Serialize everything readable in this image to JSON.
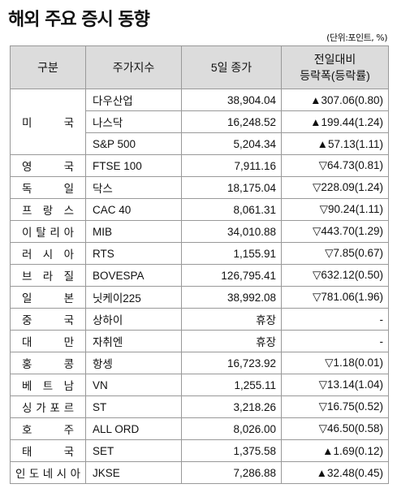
{
  "title": "해외 주요 증시 동향",
  "unit": "(단위:포인트, %)",
  "headers": {
    "col1": "구분",
    "col2": "주가지수",
    "col3": "5일 종가",
    "col4_line1": "전일대비",
    "col4_line2": "등락폭(등락률)"
  },
  "rows": [
    {
      "country": "미국",
      "index": "다우산업",
      "close": "38,904.04",
      "change": "▲307.06(0.80)"
    },
    {
      "country": "",
      "index": "나스닥",
      "close": "16,248.52",
      "change": "▲199.44(1.24)"
    },
    {
      "country": "",
      "index": "S&P 500",
      "close": "5,204.34",
      "change": "▲57.13(1.11)"
    },
    {
      "country": "영국",
      "index": "FTSE 100",
      "close": "7,911.16",
      "change": "▽64.73(0.81)"
    },
    {
      "country": "독일",
      "index": "닥스",
      "close": "18,175.04",
      "change": "▽228.09(1.24)"
    },
    {
      "country": "프랑스",
      "index": "CAC 40",
      "close": "8,061.31",
      "change": "▽90.24(1.11)"
    },
    {
      "country": "이탈리아",
      "index": "MIB",
      "close": "34,010.88",
      "change": "▽443.70(1.29)"
    },
    {
      "country": "러시아",
      "index": "RTS",
      "close": "1,155.91",
      "change": "▽7.85(0.67)"
    },
    {
      "country": "브라질",
      "index": "BOVESPA",
      "close": "126,795.41",
      "change": "▽632.12(0.50)"
    },
    {
      "country": "일본",
      "index": "닛케이225",
      "close": "38,992.08",
      "change": "▽781.06(1.96)"
    },
    {
      "country": "중국",
      "index": "상하이",
      "close": "휴장",
      "change": "-"
    },
    {
      "country": "대만",
      "index": "자취엔",
      "close": "휴장",
      "change": "-"
    },
    {
      "country": "홍콩",
      "index": "항셍",
      "close": "16,723.92",
      "change": "▽1.18(0.01)"
    },
    {
      "country": "베트남",
      "index": "VN",
      "close": "1,255.11",
      "change": "▽13.14(1.04)"
    },
    {
      "country": "싱가포르",
      "index": "ST",
      "close": "3,218.26",
      "change": "▽16.75(0.52)"
    },
    {
      "country": "호주",
      "index": "ALL ORD",
      "close": "8,026.00",
      "change": "▽46.50(0.58)"
    },
    {
      "country": "태국",
      "index": "SET",
      "close": "1,375.58",
      "change": "▲1.69(0.12)"
    },
    {
      "country": "인도네시아",
      "index": "JKSE",
      "close": "7,286.88",
      "change": "▲32.48(0.45)"
    }
  ]
}
